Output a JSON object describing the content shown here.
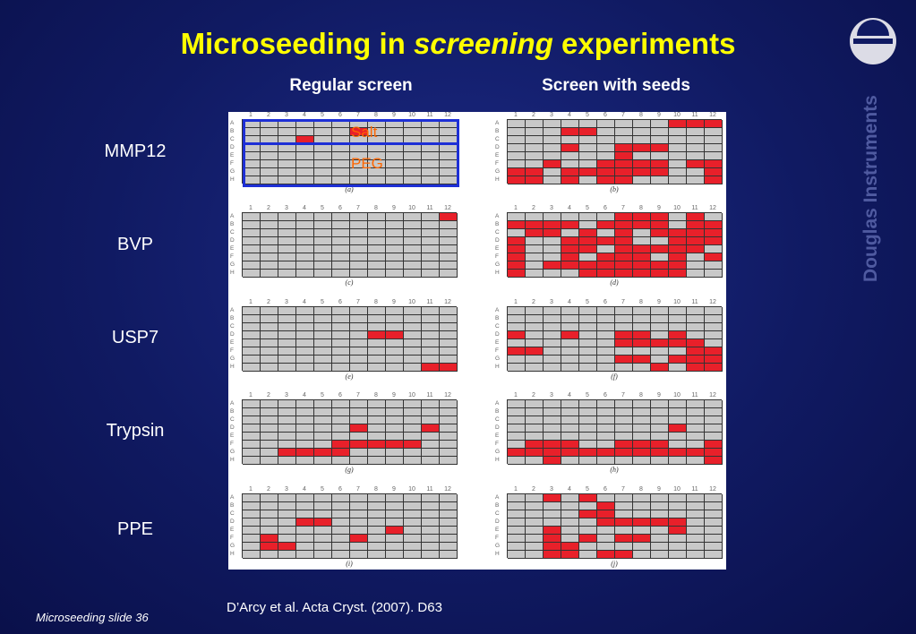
{
  "slide": {
    "title_prefix": "Microseeding in ",
    "title_emph": "screening",
    "title_suffix": " experiments",
    "col_regular": "Regular screen",
    "col_seeds": "Screen with seeds",
    "brand": "Douglas Instruments",
    "citation": "D’Arcy et al. Acta Cryst. (2007). D63",
    "footer": "Microseeding slide 36",
    "salt_label": "Salt",
    "peg_label": "PEG"
  },
  "proteins": [
    "MMP12",
    "BVP",
    "USP7",
    "Trypsin",
    "PPE"
  ],
  "plate_cols": [
    "1",
    "2",
    "3",
    "4",
    "5",
    "6",
    "7",
    "8",
    "9",
    "10",
    "11",
    "12"
  ],
  "plate_rows": [
    "A",
    "B",
    "C",
    "D",
    "E",
    "F",
    "G",
    "H"
  ],
  "colors": {
    "hit": "#e8202a",
    "miss": "#c8c8c8",
    "title": "#ffff00",
    "outline": "#1d2fd6",
    "annot": "#ff6600"
  },
  "plates": [
    {
      "caption": "(a)",
      "hits": [
        [
          1,
          6
        ],
        [
          2,
          3
        ]
      ]
    },
    {
      "caption": "(b)",
      "hits": [
        [
          0,
          9
        ],
        [
          0,
          10
        ],
        [
          0,
          11
        ],
        [
          1,
          3
        ],
        [
          1,
          4
        ],
        [
          3,
          3
        ],
        [
          3,
          6
        ],
        [
          3,
          7
        ],
        [
          3,
          8
        ],
        [
          4,
          6
        ],
        [
          5,
          2
        ],
        [
          5,
          5
        ],
        [
          5,
          6
        ],
        [
          5,
          7
        ],
        [
          5,
          8
        ],
        [
          5,
          10
        ],
        [
          5,
          11
        ],
        [
          6,
          0
        ],
        [
          6,
          1
        ],
        [
          6,
          3
        ],
        [
          6,
          4
        ],
        [
          6,
          5
        ],
        [
          6,
          6
        ],
        [
          6,
          7
        ],
        [
          6,
          8
        ],
        [
          6,
          11
        ],
        [
          7,
          0
        ],
        [
          7,
          1
        ],
        [
          7,
          3
        ],
        [
          7,
          5
        ],
        [
          7,
          6
        ],
        [
          7,
          11
        ]
      ]
    },
    {
      "caption": "(c)",
      "hits": [
        [
          0,
          11
        ]
      ]
    },
    {
      "caption": "(d)",
      "hits": [
        [
          0,
          6
        ],
        [
          0,
          7
        ],
        [
          0,
          8
        ],
        [
          0,
          10
        ],
        [
          1,
          0
        ],
        [
          1,
          1
        ],
        [
          1,
          2
        ],
        [
          1,
          3
        ],
        [
          1,
          5
        ],
        [
          1,
          6
        ],
        [
          1,
          7
        ],
        [
          1,
          8
        ],
        [
          1,
          10
        ],
        [
          1,
          11
        ],
        [
          2,
          1
        ],
        [
          2,
          2
        ],
        [
          2,
          4
        ],
        [
          2,
          6
        ],
        [
          2,
          8
        ],
        [
          2,
          9
        ],
        [
          2,
          10
        ],
        [
          2,
          11
        ],
        [
          3,
          0
        ],
        [
          3,
          3
        ],
        [
          3,
          4
        ],
        [
          3,
          5
        ],
        [
          3,
          6
        ],
        [
          3,
          9
        ],
        [
          3,
          10
        ],
        [
          3,
          11
        ],
        [
          4,
          0
        ],
        [
          4,
          3
        ],
        [
          4,
          4
        ],
        [
          4,
          6
        ],
        [
          4,
          7
        ],
        [
          4,
          8
        ],
        [
          4,
          9
        ],
        [
          4,
          10
        ],
        [
          5,
          0
        ],
        [
          5,
          3
        ],
        [
          5,
          5
        ],
        [
          5,
          6
        ],
        [
          5,
          7
        ],
        [
          5,
          9
        ],
        [
          5,
          11
        ],
        [
          6,
          0
        ],
        [
          6,
          2
        ],
        [
          6,
          3
        ],
        [
          6,
          4
        ],
        [
          6,
          5
        ],
        [
          6,
          6
        ],
        [
          6,
          7
        ],
        [
          6,
          8
        ],
        [
          6,
          9
        ],
        [
          7,
          0
        ],
        [
          7,
          4
        ],
        [
          7,
          5
        ],
        [
          7,
          6
        ],
        [
          7,
          7
        ],
        [
          7,
          8
        ],
        [
          7,
          9
        ]
      ]
    },
    {
      "caption": "(e)",
      "hits": [
        [
          3,
          7
        ],
        [
          3,
          8
        ],
        [
          7,
          10
        ],
        [
          7,
          11
        ]
      ]
    },
    {
      "caption": "(f)",
      "hits": [
        [
          3,
          0
        ],
        [
          3,
          3
        ],
        [
          3,
          6
        ],
        [
          3,
          7
        ],
        [
          3,
          9
        ],
        [
          4,
          6
        ],
        [
          4,
          7
        ],
        [
          4,
          8
        ],
        [
          4,
          9
        ],
        [
          4,
          10
        ],
        [
          5,
          0
        ],
        [
          5,
          1
        ],
        [
          5,
          10
        ],
        [
          5,
          11
        ],
        [
          6,
          6
        ],
        [
          6,
          7
        ],
        [
          6,
          9
        ],
        [
          6,
          10
        ],
        [
          6,
          11
        ],
        [
          7,
          8
        ],
        [
          7,
          10
        ],
        [
          7,
          11
        ]
      ]
    },
    {
      "caption": "(g)",
      "hits": [
        [
          3,
          6
        ],
        [
          3,
          10
        ],
        [
          5,
          5
        ],
        [
          5,
          6
        ],
        [
          5,
          7
        ],
        [
          5,
          8
        ],
        [
          5,
          9
        ],
        [
          6,
          2
        ],
        [
          6,
          3
        ],
        [
          6,
          4
        ],
        [
          6,
          5
        ]
      ]
    },
    {
      "caption": "(h)",
      "hits": [
        [
          3,
          9
        ],
        [
          5,
          1
        ],
        [
          5,
          2
        ],
        [
          5,
          3
        ],
        [
          5,
          6
        ],
        [
          5,
          7
        ],
        [
          5,
          8
        ],
        [
          5,
          11
        ],
        [
          6,
          0
        ],
        [
          6,
          1
        ],
        [
          6,
          2
        ],
        [
          6,
          3
        ],
        [
          6,
          4
        ],
        [
          6,
          5
        ],
        [
          6,
          6
        ],
        [
          6,
          7
        ],
        [
          6,
          8
        ],
        [
          6,
          9
        ],
        [
          6,
          10
        ],
        [
          6,
          11
        ],
        [
          7,
          2
        ],
        [
          7,
          11
        ]
      ]
    },
    {
      "caption": "(i)",
      "hits": [
        [
          3,
          3
        ],
        [
          3,
          4
        ],
        [
          4,
          8
        ],
        [
          5,
          1
        ],
        [
          5,
          6
        ],
        [
          6,
          1
        ],
        [
          6,
          2
        ]
      ]
    },
    {
      "caption": "(j)",
      "hits": [
        [
          0,
          2
        ],
        [
          0,
          4
        ],
        [
          1,
          5
        ],
        [
          2,
          4
        ],
        [
          2,
          5
        ],
        [
          3,
          5
        ],
        [
          3,
          6
        ],
        [
          3,
          7
        ],
        [
          3,
          8
        ],
        [
          3,
          9
        ],
        [
          4,
          2
        ],
        [
          4,
          9
        ],
        [
          5,
          2
        ],
        [
          5,
          4
        ],
        [
          5,
          6
        ],
        [
          5,
          7
        ],
        [
          6,
          2
        ],
        [
          6,
          3
        ],
        [
          7,
          2
        ],
        [
          7,
          3
        ],
        [
          7,
          5
        ],
        [
          7,
          6
        ]
      ]
    }
  ]
}
